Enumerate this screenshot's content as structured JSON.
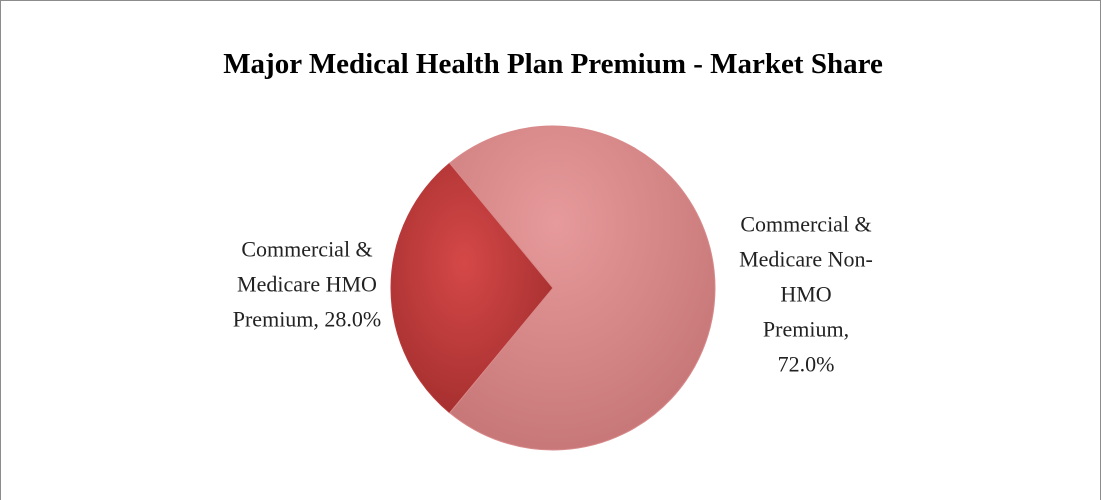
{
  "chart_data": {
    "type": "pie",
    "title": "Major Medical Health Plan Premium - Market Share",
    "values": [
      28.0,
      72.0
    ],
    "value_labels": [
      "Commercial & Medicare HMO Premium, 28.0%",
      "Commercial & Medicare Non-HMO Premium, 72.0%"
    ],
    "colors": [
      "#b93b3b",
      "#d98a8b"
    ]
  }
}
